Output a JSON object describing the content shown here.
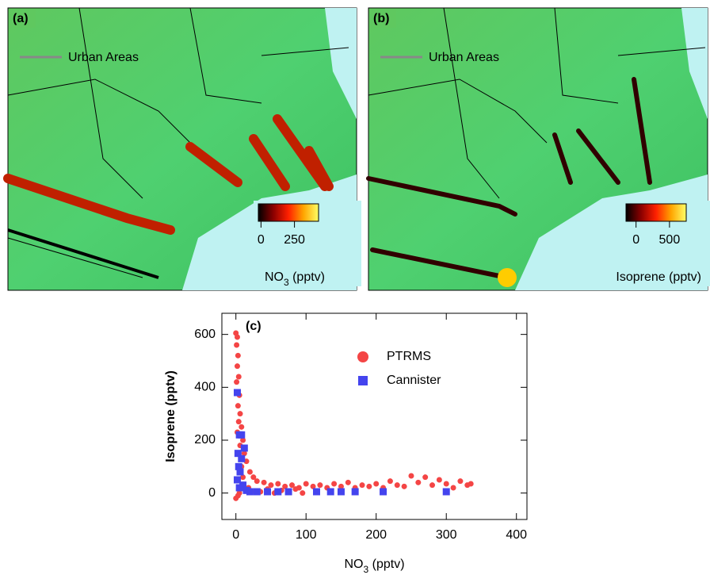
{
  "maps": [
    {
      "label": "(a)",
      "legend": "Urban Areas",
      "colorbar": {
        "title": [
          "NO",
          "3",
          " (pptv)"
        ],
        "range": [
          -20,
          430
        ],
        "ticks": [
          0,
          250
        ],
        "colors": [
          "#000000",
          "#8b0000",
          "#ff2000",
          "#ffa500",
          "#ffff66"
        ]
      }
    },
    {
      "label": "(b)",
      "legend": "Urban Areas",
      "colorbar": {
        "title": [
          "Isoprene (pptv)"
        ],
        "range": [
          -150,
          750
        ],
        "ticks": [
          0,
          500
        ],
        "colors": [
          "#000000",
          "#8b0000",
          "#ff2000",
          "#ffa500",
          "#ffff66"
        ]
      }
    }
  ],
  "chart_data": {
    "type": "scatter",
    "label": "(c)",
    "x_label": [
      "NO",
      "3",
      " (pptv)"
    ],
    "y_label": "Isoprene (pptv)",
    "xlim": [
      -20,
      415
    ],
    "ylim": [
      -100,
      680
    ],
    "xticks": [
      0,
      100,
      200,
      300,
      400
    ],
    "yticks": [
      0,
      200,
      400,
      600
    ],
    "legend": "upper right",
    "series": [
      {
        "name": "PTRMS",
        "color": "#f44545",
        "marker": "circle",
        "x": [
          0,
          2,
          1,
          3,
          2,
          4,
          1,
          5,
          3,
          6,
          4,
          8,
          2,
          10,
          6,
          12,
          15,
          8,
          20,
          25,
          30,
          40,
          50,
          60,
          70,
          80,
          90,
          100,
          110,
          120,
          130,
          140,
          150,
          160,
          170,
          180,
          190,
          200,
          210,
          220,
          230,
          240,
          250,
          260,
          270,
          280,
          290,
          300,
          310,
          320,
          330,
          335,
          5,
          15,
          35,
          45,
          55,
          65,
          75,
          85,
          95,
          0,
          3,
          10,
          18,
          22
        ],
        "values": [
          605,
          590,
          560,
          520,
          480,
          440,
          420,
          370,
          330,
          300,
          270,
          250,
          230,
          200,
          180,
          150,
          120,
          100,
          80,
          60,
          45,
          40,
          30,
          35,
          25,
          30,
          20,
          35,
          25,
          30,
          20,
          35,
          25,
          40,
          20,
          30,
          25,
          35,
          20,
          45,
          30,
          25,
          65,
          40,
          60,
          30,
          50,
          35,
          20,
          45,
          30,
          35,
          0,
          10,
          5,
          15,
          0,
          10,
          5,
          15,
          0,
          -20,
          -10,
          60,
          20,
          5
        ]
      },
      {
        "name": "Cannister",
        "color": "#4444ee",
        "marker": "square",
        "x": [
          2,
          5,
          8,
          3,
          12,
          4,
          6,
          2,
          10,
          15,
          20,
          30,
          45,
          60,
          75,
          115,
          135,
          150,
          170,
          210,
          300,
          8,
          5
        ],
        "values": [
          380,
          220,
          220,
          150,
          170,
          100,
          80,
          50,
          30,
          10,
          5,
          5,
          5,
          5,
          5,
          5,
          5,
          5,
          5,
          5,
          5,
          130,
          20
        ]
      }
    ]
  }
}
